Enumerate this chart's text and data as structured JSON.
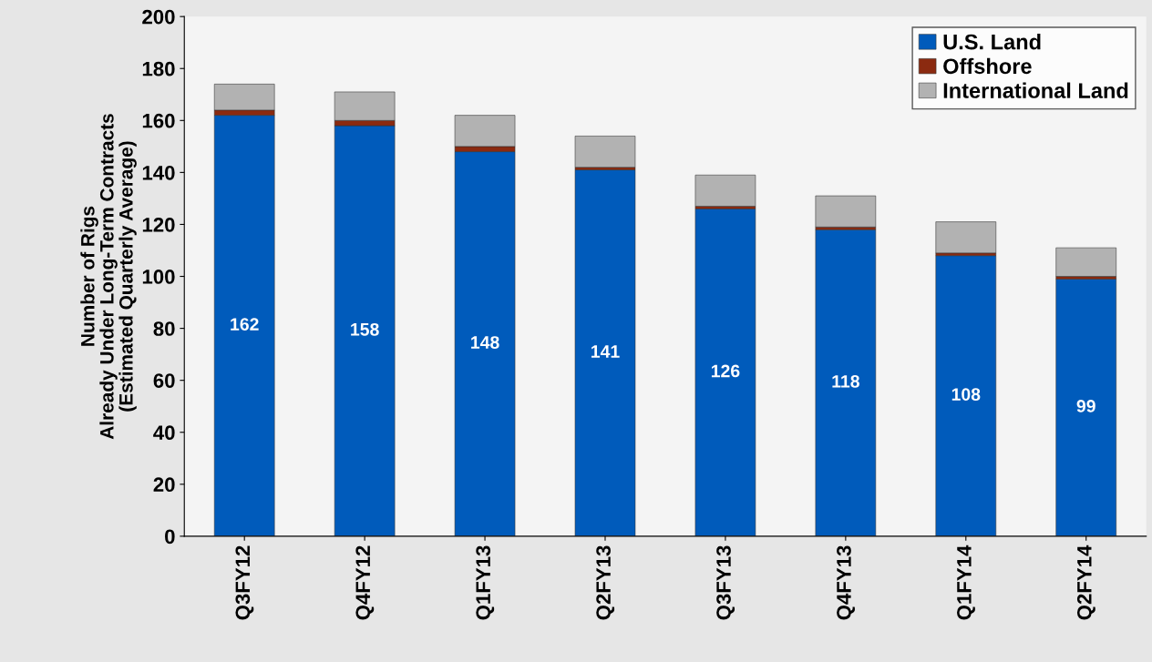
{
  "chart_data": {
    "type": "bar",
    "stacked": true,
    "ylabel": "Number of Rigs\nAlready Under Long-Term Contracts\n(Estimated Quarterly Average)",
    "categories": [
      "Q3FY12",
      "Q4FY12",
      "Q1FY13",
      "Q2FY13",
      "Q3FY13",
      "Q4FY13",
      "Q1FY14",
      "Q2FY14"
    ],
    "series": [
      {
        "name": "U.S. Land",
        "color": "#005bbb",
        "values": [
          162,
          158,
          148,
          141,
          126,
          118,
          108,
          99
        ],
        "value_labels": [
          "162",
          "158",
          "148",
          "141",
          "126",
          "118",
          "108",
          "99"
        ]
      },
      {
        "name": "Offshore",
        "color": "#8b2a10",
        "values": [
          2,
          2,
          2,
          1,
          1,
          1,
          1,
          1
        ]
      },
      {
        "name": "International Land",
        "color": "#b2b2b2",
        "values": [
          10,
          11,
          12,
          12,
          12,
          12,
          12,
          11
        ]
      }
    ],
    "ylim": [
      0,
      200
    ],
    "yticks": [
      0,
      20,
      40,
      60,
      80,
      100,
      120,
      140,
      160,
      180,
      200
    ],
    "grid": false,
    "legend": "top right"
  }
}
